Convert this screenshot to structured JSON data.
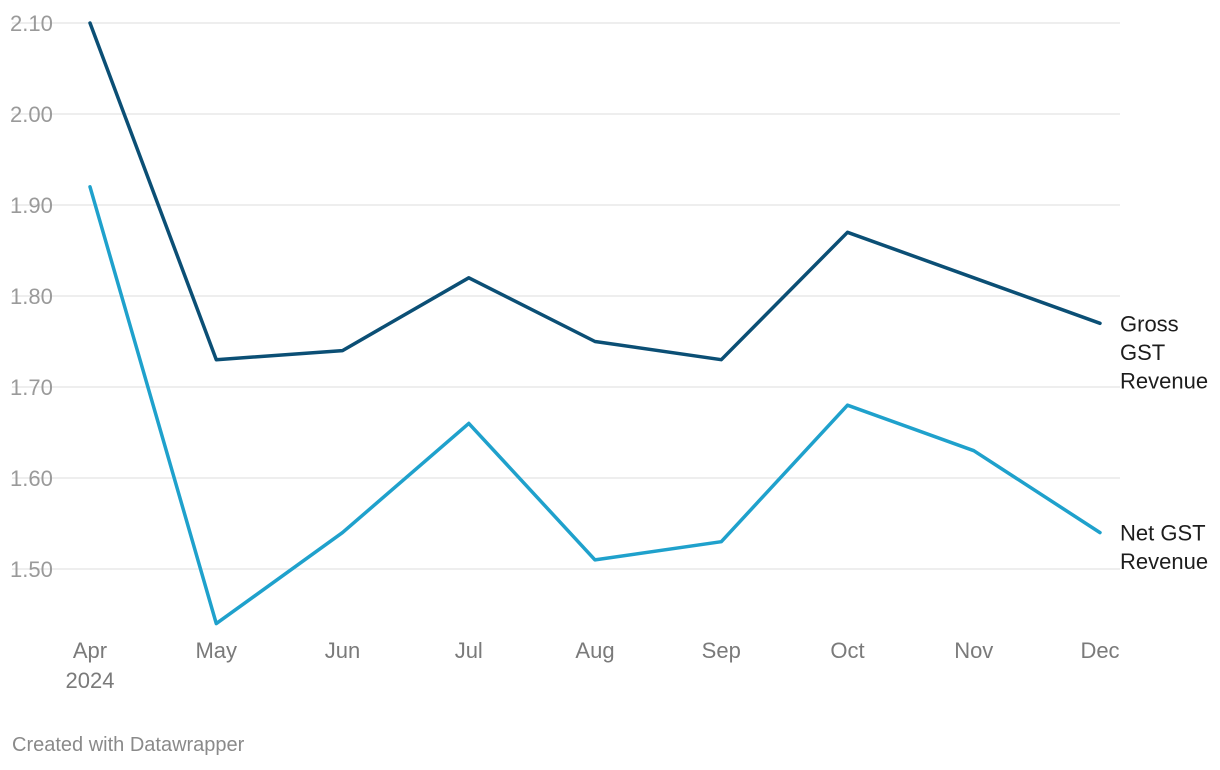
{
  "chart_data": {
    "type": "line",
    "categories": [
      "Apr",
      "May",
      "Jun",
      "Jul",
      "Aug",
      "Sep",
      "Oct",
      "Nov",
      "Dec"
    ],
    "first_category_sublabel": "2024",
    "series": [
      {
        "name": "Gross GST Revenue",
        "label_lines": [
          "Gross",
          "GST",
          "Revenue"
        ],
        "color": "#0b4f75",
        "values": [
          2.1,
          1.73,
          1.74,
          1.82,
          1.75,
          1.73,
          1.87,
          1.82,
          1.77
        ]
      },
      {
        "name": "Net GST Revenue",
        "label_lines": [
          "Net GST",
          "Revenue"
        ],
        "color": "#1fa1cc",
        "values": [
          1.92,
          1.44,
          1.54,
          1.66,
          1.51,
          1.53,
          1.68,
          1.63,
          1.54
        ]
      }
    ],
    "yticks": [
      "2.10",
      "2.00",
      "1.90",
      "1.80",
      "1.70",
      "1.60",
      "1.50"
    ],
    "ylim": [
      1.44,
      2.1
    ],
    "grid": true,
    "title": "",
    "xlabel": "",
    "ylabel": ""
  },
  "footer": {
    "credit": "Created with Datawrapper"
  }
}
